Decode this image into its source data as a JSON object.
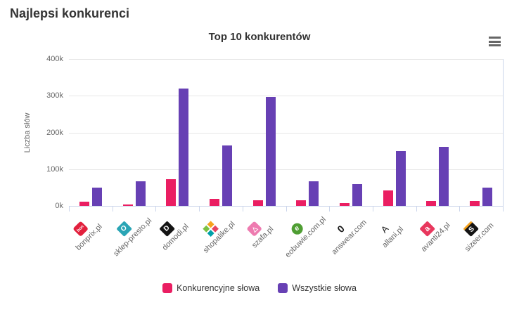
{
  "page": {
    "title": "Najlepsi konkurenci"
  },
  "chart": {
    "menu_icon": "hamburger"
  },
  "chart_data": {
    "type": "bar",
    "title": "Top 10 konkurentów",
    "xlabel": "",
    "ylabel": "Liczba słów",
    "ylim": [
      0,
      400000
    ],
    "ytick_labels": [
      "0k",
      "100k",
      "200k",
      "300k",
      "400k"
    ],
    "grid": true,
    "legend_position": "bottom",
    "categories": [
      "bonprix.pl",
      "sklep-presto.pl",
      "domodi.pl",
      "shopalike.pl",
      "szafa.pl",
      "eobuwie.com.pl",
      "answear.com",
      "allani.pl",
      "avanti24.pl",
      "sizeer.com"
    ],
    "series": [
      {
        "name": "Konkurencyjne słowa",
        "color": "#ea1e62",
        "values": [
          12000,
          4000,
          73000,
          20000,
          15000,
          15000,
          8000,
          42000,
          14000,
          13000
        ]
      },
      {
        "name": "Wszystkie słowa",
        "color": "#6740b4",
        "values": [
          49000,
          67000,
          320000,
          165000,
          297000,
          67000,
          60000,
          149000,
          160000,
          49000
        ]
      }
    ]
  },
  "category_icons": [
    {
      "name": "bonprix-favicon-icon",
      "type": "glyph",
      "glyph": "bon",
      "bg": "#e2203d",
      "fg": "#ffffff",
      "size": 6,
      "radius": 3,
      "bold": true
    },
    {
      "name": "sklep-presto-favicon-icon",
      "type": "glyph",
      "glyph": "O",
      "bg": "#2aa5b5",
      "fg": "#ffffff",
      "size": 10,
      "radius": 2,
      "bold": true
    },
    {
      "name": "domodi-favicon-icon",
      "type": "glyph",
      "glyph": "D",
      "bg": "#141414",
      "fg": "#ffffff",
      "size": 10,
      "radius": 2,
      "bold": true
    },
    {
      "name": "shopalike-favicon-icon",
      "type": "grid",
      "colors": [
        "#7ac143",
        "#f6a21d",
        "#00a0a8",
        "#e54360"
      ],
      "bg": "#ffffff"
    },
    {
      "name": "szafa-favicon-icon",
      "type": "glyph",
      "glyph": "△",
      "bg": "#ee7bb0",
      "fg": "#ffffff",
      "size": 9,
      "radius": 3,
      "bold": true
    },
    {
      "name": "eobuwie-favicon-icon",
      "type": "glyph",
      "glyph": "e",
      "bg": "#4f9e33",
      "fg": "#ffffff",
      "size": 10,
      "radius": 8,
      "italic": true,
      "bold": true
    },
    {
      "name": "answear-favicon-icon",
      "type": "glyph",
      "glyph": "0",
      "bg": "transparent",
      "fg": "#1a1a1a",
      "size": 14,
      "radius": 0,
      "bold": true
    },
    {
      "name": "allani-favicon-icon",
      "type": "glyph",
      "glyph": "A",
      "bg": "transparent",
      "fg": "#1a1a1a",
      "size": 13,
      "radius": 0
    },
    {
      "name": "avanti24-favicon-icon",
      "type": "glyph",
      "glyph": "a",
      "bg": "#e8375d",
      "fg": "#ffffff",
      "size": 11,
      "radius": 2,
      "bold": true
    },
    {
      "name": "sizeer-favicon-icon",
      "type": "glyph",
      "glyph": "S",
      "bg": "#141414",
      "fg": "#ffffff",
      "size": 10,
      "radius": 2,
      "bold": true,
      "topStripe": "#f6a21d"
    }
  ]
}
